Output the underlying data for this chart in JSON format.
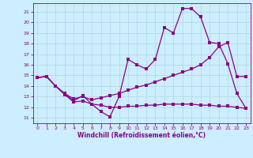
{
  "xlabel": "Windchill (Refroidissement éolien,°C)",
  "bg_color": "#cceeff",
  "grid_color": "#b0d8e0",
  "line_color": "#880088",
  "x_ticks": [
    0,
    1,
    2,
    3,
    4,
    5,
    6,
    7,
    8,
    9,
    10,
    11,
    12,
    13,
    14,
    15,
    16,
    17,
    18,
    19,
    20,
    21,
    22,
    23
  ],
  "y_ticks": [
    11,
    12,
    13,
    14,
    15,
    16,
    17,
    18,
    19,
    20,
    21
  ],
  "ylim": [
    10.5,
    21.8
  ],
  "xlim": [
    -0.5,
    23.5
  ],
  "line1_x": [
    0,
    1,
    2,
    3,
    4,
    5,
    6,
    7,
    8,
    9,
    10,
    11,
    12,
    13,
    14,
    15,
    16,
    17,
    18,
    19,
    20,
    21,
    22,
    23
  ],
  "line1_y": [
    14.8,
    14.9,
    14.0,
    13.3,
    12.6,
    13.1,
    12.3,
    11.6,
    11.1,
    13.0,
    16.5,
    16.0,
    15.6,
    16.5,
    19.5,
    19.0,
    21.3,
    21.3,
    20.5,
    18.1,
    18.0,
    16.1,
    13.3,
    11.9
  ],
  "line2_x": [
    0,
    1,
    2,
    3,
    4,
    5,
    6,
    7,
    8,
    9,
    10,
    11,
    12,
    13,
    14,
    15,
    16,
    17,
    18,
    19,
    20,
    21,
    22,
    23
  ],
  "line2_y": [
    14.8,
    14.9,
    14.0,
    13.3,
    12.8,
    13.0,
    12.7,
    12.9,
    13.1,
    13.3,
    13.6,
    13.9,
    14.1,
    14.4,
    14.7,
    15.0,
    15.3,
    15.6,
    16.0,
    16.7,
    17.7,
    18.1,
    14.9,
    14.9
  ],
  "line3_x": [
    0,
    1,
    2,
    3,
    4,
    5,
    6,
    7,
    8,
    9,
    10,
    11,
    12,
    13,
    14,
    15,
    16,
    17,
    18,
    19,
    20,
    21,
    22,
    23
  ],
  "line3_y": [
    14.8,
    14.9,
    14.0,
    13.2,
    12.5,
    12.6,
    12.3,
    12.2,
    12.0,
    12.0,
    12.1,
    12.1,
    12.2,
    12.2,
    12.3,
    12.3,
    12.3,
    12.3,
    12.2,
    12.2,
    12.1,
    12.1,
    12.0,
    11.9
  ]
}
